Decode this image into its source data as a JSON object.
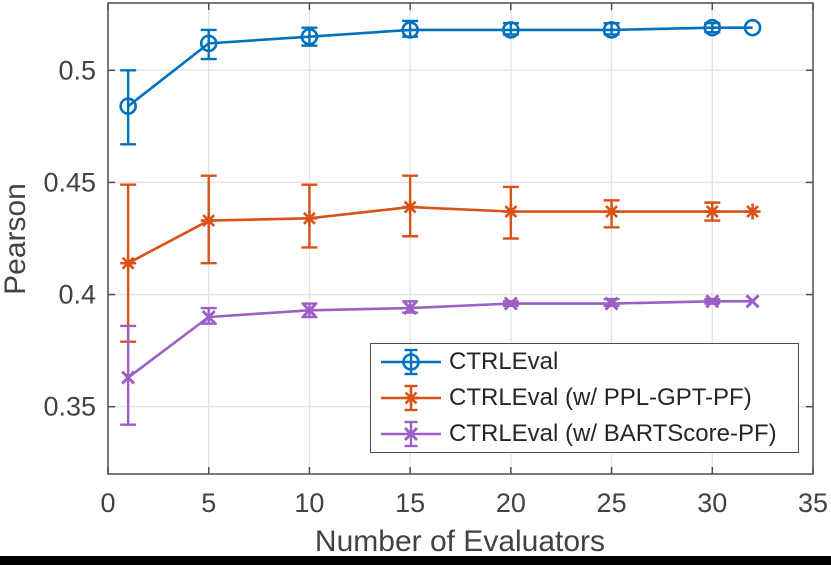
{
  "figure": {
    "background": "#ffffff",
    "axis_color": "#4d4d4d",
    "grid_color": "#e3e3e3",
    "tick_text_color": "#424242",
    "legend_text_color": "#262626",
    "bottom_bar_color": "#000000"
  },
  "chart_data": {
    "type": "line",
    "title": "",
    "xlabel": "Number of Evaluators",
    "ylabel": "Pearson",
    "xlim": [
      0,
      35
    ],
    "ylim": [
      0.32,
      0.53
    ],
    "xticks": [
      0,
      5,
      10,
      15,
      20,
      25,
      30,
      35
    ],
    "xtick_labels": [
      "0",
      "5",
      "10",
      "15",
      "20",
      "25",
      "30",
      "35"
    ],
    "yticks": [
      0.35,
      0.4,
      0.45,
      0.5
    ],
    "ytick_labels": [
      "0.35",
      "0.4",
      "0.45",
      "0.5"
    ],
    "grid": true,
    "legend_position": "lower right",
    "x": [
      1,
      5,
      10,
      15,
      20,
      25,
      30,
      32
    ],
    "series": [
      {
        "name": "CTRLEval",
        "color": "#0072BD",
        "marker": "circle",
        "values": [
          0.484,
          0.512,
          0.515,
          0.518,
          0.518,
          0.518,
          0.519,
          0.519
        ],
        "err_low": [
          0.467,
          0.505,
          0.511,
          0.515,
          0.516,
          0.516,
          0.517,
          0.519
        ],
        "err_high": [
          0.5,
          0.518,
          0.519,
          0.522,
          0.521,
          0.521,
          0.521,
          0.519
        ]
      },
      {
        "name": "CTRLEval (w/ PPL-GPT-PF)",
        "color": "#D95319",
        "marker": "asterisk",
        "values": [
          0.414,
          0.433,
          0.434,
          0.439,
          0.437,
          0.437,
          0.437,
          0.437
        ],
        "err_low": [
          0.379,
          0.414,
          0.421,
          0.426,
          0.425,
          0.43,
          0.433,
          0.437
        ],
        "err_high": [
          0.449,
          0.453,
          0.449,
          0.453,
          0.448,
          0.442,
          0.441,
          0.437
        ]
      },
      {
        "name": "CTRLEval (w/ BARTScore-PF)",
        "color": "#9B5FC6",
        "marker": "x",
        "values": [
          0.363,
          0.39,
          0.393,
          0.394,
          0.396,
          0.396,
          0.397,
          0.397
        ],
        "err_low": [
          0.342,
          0.387,
          0.39,
          0.392,
          0.395,
          0.395,
          0.396,
          0.397
        ],
        "err_high": [
          0.386,
          0.394,
          0.396,
          0.397,
          0.397,
          0.398,
          0.398,
          0.397
        ]
      }
    ]
  }
}
